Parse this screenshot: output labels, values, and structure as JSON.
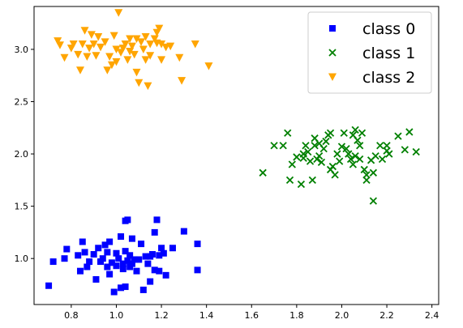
{
  "chart_data": {
    "type": "scatter",
    "title": "",
    "xlabel": "",
    "ylabel": "",
    "xlim": [
      0.635,
      2.43
    ],
    "ylim": [
      0.56,
      3.41
    ],
    "xticks": [
      0.8,
      1.0,
      1.2,
      1.4,
      1.6,
      1.8,
      2.0,
      2.2,
      2.4
    ],
    "xtick_labels": [
      "0.8",
      "1.0",
      "1.2",
      "1.4",
      "1.6",
      "1.8",
      "2.0",
      "2.2",
      "2.4"
    ],
    "yticks": [
      1.0,
      1.5,
      2.0,
      2.5,
      3.0
    ],
    "ytick_labels": [
      "1.0",
      "1.5",
      "2.0",
      "2.5",
      "3.0"
    ],
    "grid": false,
    "legend_position": "top-right",
    "series": [
      {
        "name": "class 0",
        "marker": "square",
        "color": "#0000ff",
        "points": [
          [
            0.7,
            0.74
          ],
          [
            0.72,
            0.97
          ],
          [
            0.77,
            1.0
          ],
          [
            0.78,
            1.09
          ],
          [
            0.83,
            1.03
          ],
          [
            0.84,
            0.88
          ],
          [
            0.85,
            1.16
          ],
          [
            0.86,
            1.06
          ],
          [
            0.87,
            0.92
          ],
          [
            0.88,
            0.97
          ],
          [
            0.9,
            1.04
          ],
          [
            0.91,
            0.8
          ],
          [
            0.92,
            1.1
          ],
          [
            0.93,
            0.97
          ],
          [
            0.94,
            1.0
          ],
          [
            0.95,
            1.13
          ],
          [
            0.96,
            0.92
          ],
          [
            0.96,
            1.06
          ],
          [
            0.97,
            0.85
          ],
          [
            0.97,
            1.16
          ],
          [
            0.98,
            0.96
          ],
          [
            0.99,
            0.68
          ],
          [
            1.0,
            1.05
          ],
          [
            1.0,
            0.93
          ],
          [
            1.01,
            1.0
          ],
          [
            1.02,
            1.21
          ],
          [
            1.02,
            0.72
          ],
          [
            1.03,
            0.95
          ],
          [
            1.03,
            0.9
          ],
          [
            1.04,
            0.73
          ],
          [
            1.04,
            1.07
          ],
          [
            1.04,
            1.36
          ],
          [
            1.05,
            0.98
          ],
          [
            1.05,
            1.37
          ],
          [
            1.06,
            1.03
          ],
          [
            1.06,
            0.92
          ],
          [
            1.07,
            0.95
          ],
          [
            1.07,
            1.19
          ],
          [
            1.08,
            0.99
          ],
          [
            1.09,
            0.88
          ],
          [
            1.1,
            0.99
          ],
          [
            1.11,
            1.14
          ],
          [
            1.12,
            0.7
          ],
          [
            1.13,
            1.02
          ],
          [
            1.14,
            0.95
          ],
          [
            1.15,
            0.78
          ],
          [
            1.15,
            1.02
          ],
          [
            1.16,
            1.04
          ],
          [
            1.17,
            1.25
          ],
          [
            1.17,
            0.89
          ],
          [
            1.18,
            1.37
          ],
          [
            1.19,
            1.03
          ],
          [
            1.19,
            0.88
          ],
          [
            1.2,
            1.1
          ],
          [
            1.21,
            1.05
          ],
          [
            1.22,
            0.84
          ],
          [
            1.25,
            1.1
          ],
          [
            1.3,
            1.26
          ],
          [
            1.36,
            1.14
          ],
          [
            1.36,
            0.89
          ]
        ]
      },
      {
        "name": "class 1",
        "marker": "x",
        "color": "#008000",
        "points": [
          [
            1.65,
            1.82
          ],
          [
            1.7,
            2.08
          ],
          [
            1.74,
            2.08
          ],
          [
            1.76,
            2.2
          ],
          [
            1.77,
            1.75
          ],
          [
            1.78,
            1.9
          ],
          [
            1.8,
            1.97
          ],
          [
            1.82,
            1.71
          ],
          [
            1.83,
            1.96
          ],
          [
            1.83,
            2.0
          ],
          [
            1.84,
            2.08
          ],
          [
            1.85,
            2.02
          ],
          [
            1.86,
            1.93
          ],
          [
            1.87,
            1.75
          ],
          [
            1.88,
            2.08
          ],
          [
            1.88,
            2.15
          ],
          [
            1.89,
            1.95
          ],
          [
            1.9,
            1.98
          ],
          [
            1.9,
            2.1
          ],
          [
            1.91,
            1.92
          ],
          [
            1.92,
            2.05
          ],
          [
            1.93,
            2.12
          ],
          [
            1.94,
            2.18
          ],
          [
            1.95,
            1.85
          ],
          [
            1.95,
            2.2
          ],
          [
            1.96,
            1.88
          ],
          [
            1.97,
            1.8
          ],
          [
            1.98,
            2.0
          ],
          [
            1.99,
            1.93
          ],
          [
            2.0,
            2.07
          ],
          [
            2.01,
            2.2
          ],
          [
            2.02,
            2.05
          ],
          [
            2.03,
            2.0
          ],
          [
            2.04,
            1.95
          ],
          [
            2.05,
            2.18
          ],
          [
            2.05,
            1.9
          ],
          [
            2.06,
            2.23
          ],
          [
            2.06,
            1.98
          ],
          [
            2.07,
            2.13
          ],
          [
            2.08,
            2.08
          ],
          [
            2.08,
            1.95
          ],
          [
            2.09,
            2.2
          ],
          [
            2.1,
            1.85
          ],
          [
            2.11,
            1.75
          ],
          [
            2.11,
            1.8
          ],
          [
            2.13,
            1.94
          ],
          [
            2.14,
            1.55
          ],
          [
            2.14,
            1.82
          ],
          [
            2.15,
            1.98
          ],
          [
            2.17,
            2.08
          ],
          [
            2.18,
            1.95
          ],
          [
            2.2,
            2.03
          ],
          [
            2.2,
            2.08
          ],
          [
            2.21,
            2.0
          ],
          [
            2.25,
            2.17
          ],
          [
            2.28,
            2.04
          ],
          [
            2.3,
            2.21
          ],
          [
            2.33,
            2.02
          ]
        ]
      },
      {
        "name": "class 2",
        "marker": "triangle-down",
        "color": "#ffa500",
        "points": [
          [
            0.74,
            3.08
          ],
          [
            0.75,
            3.04
          ],
          [
            0.77,
            2.92
          ],
          [
            0.8,
            3.01
          ],
          [
            0.81,
            3.05
          ],
          [
            0.83,
            2.95
          ],
          [
            0.84,
            2.8
          ],
          [
            0.85,
            3.05
          ],
          [
            0.86,
            3.18
          ],
          [
            0.87,
            2.93
          ],
          [
            0.88,
            3.01
          ],
          [
            0.89,
            3.14
          ],
          [
            0.9,
            3.05
          ],
          [
            0.91,
            2.94
          ],
          [
            0.92,
            3.12
          ],
          [
            0.93,
            3.02
          ],
          [
            0.95,
            3.07
          ],
          [
            0.96,
            2.8
          ],
          [
            0.97,
            2.93
          ],
          [
            0.98,
            2.85
          ],
          [
            0.99,
            3.13
          ],
          [
            1.0,
            3.0
          ],
          [
            1.0,
            2.88
          ],
          [
            1.01,
            3.35
          ],
          [
            1.02,
            2.97
          ],
          [
            1.03,
            3.01
          ],
          [
            1.04,
            3.05
          ],
          [
            1.05,
            2.9
          ],
          [
            1.06,
            2.98
          ],
          [
            1.06,
            3.1
          ],
          [
            1.07,
            3.03
          ],
          [
            1.08,
            2.95
          ],
          [
            1.09,
            2.78
          ],
          [
            1.09,
            3.1
          ],
          [
            1.1,
            2.68
          ],
          [
            1.11,
            3.07
          ],
          [
            1.12,
            3.0
          ],
          [
            1.13,
            2.9
          ],
          [
            1.13,
            3.12
          ],
          [
            1.14,
            2.65
          ],
          [
            1.15,
            3.05
          ],
          [
            1.15,
            2.94
          ],
          [
            1.17,
            3.1
          ],
          [
            1.18,
            3.06
          ],
          [
            1.18,
            3.16
          ],
          [
            1.19,
            3.2
          ],
          [
            1.2,
            2.9
          ],
          [
            1.2,
            3.05
          ],
          [
            1.22,
            3.02
          ],
          [
            1.24,
            3.03
          ],
          [
            1.28,
            2.92
          ],
          [
            1.29,
            2.7
          ],
          [
            1.35,
            3.05
          ],
          [
            1.41,
            2.84
          ]
        ]
      }
    ]
  }
}
